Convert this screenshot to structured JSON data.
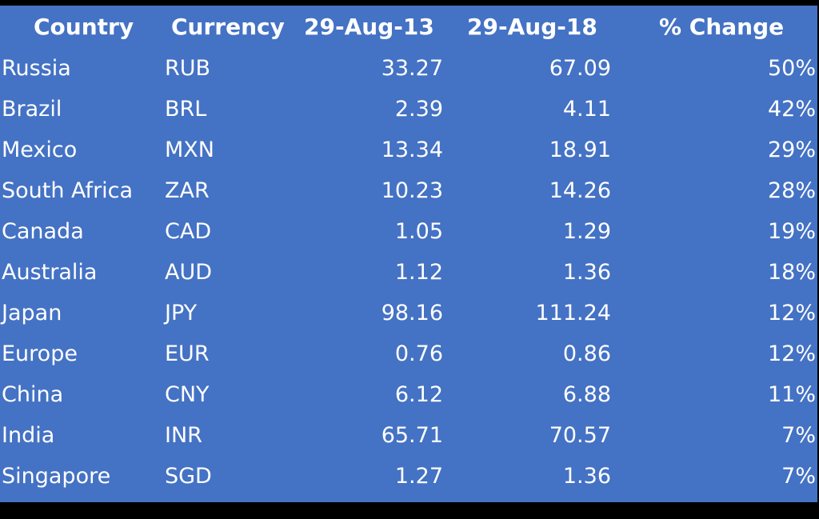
{
  "chart_data": {
    "type": "table",
    "columns": [
      "Country",
      "Currency",
      "29-Aug-13",
      "29-Aug-18",
      "% Change"
    ],
    "rows": [
      [
        "Russia",
        "RUB",
        "33.27",
        "67.09",
        "50%"
      ],
      [
        "Brazil",
        "BRL",
        "2.39",
        "4.11",
        "42%"
      ],
      [
        "Mexico",
        "MXN",
        "13.34",
        "18.91",
        "29%"
      ],
      [
        "South Africa",
        "ZAR",
        "10.23",
        "14.26",
        "28%"
      ],
      [
        "Canada",
        "CAD",
        "1.05",
        "1.29",
        "19%"
      ],
      [
        "Australia",
        "AUD",
        "1.12",
        "1.36",
        "18%"
      ],
      [
        "Japan",
        "JPY",
        "98.16",
        "111.24",
        "12%"
      ],
      [
        "Europe",
        "EUR",
        "0.76",
        "0.86",
        "12%"
      ],
      [
        "China",
        "CNY",
        "6.12",
        "6.88",
        "11%"
      ],
      [
        "India",
        "INR",
        "65.71",
        "70.57",
        "7%"
      ],
      [
        "Singapore",
        "SGD",
        "1.27",
        "1.36",
        "7%"
      ]
    ]
  },
  "colors": {
    "table_background": "#4472c4",
    "text": "#ffffff",
    "page_background": "#000000"
  }
}
